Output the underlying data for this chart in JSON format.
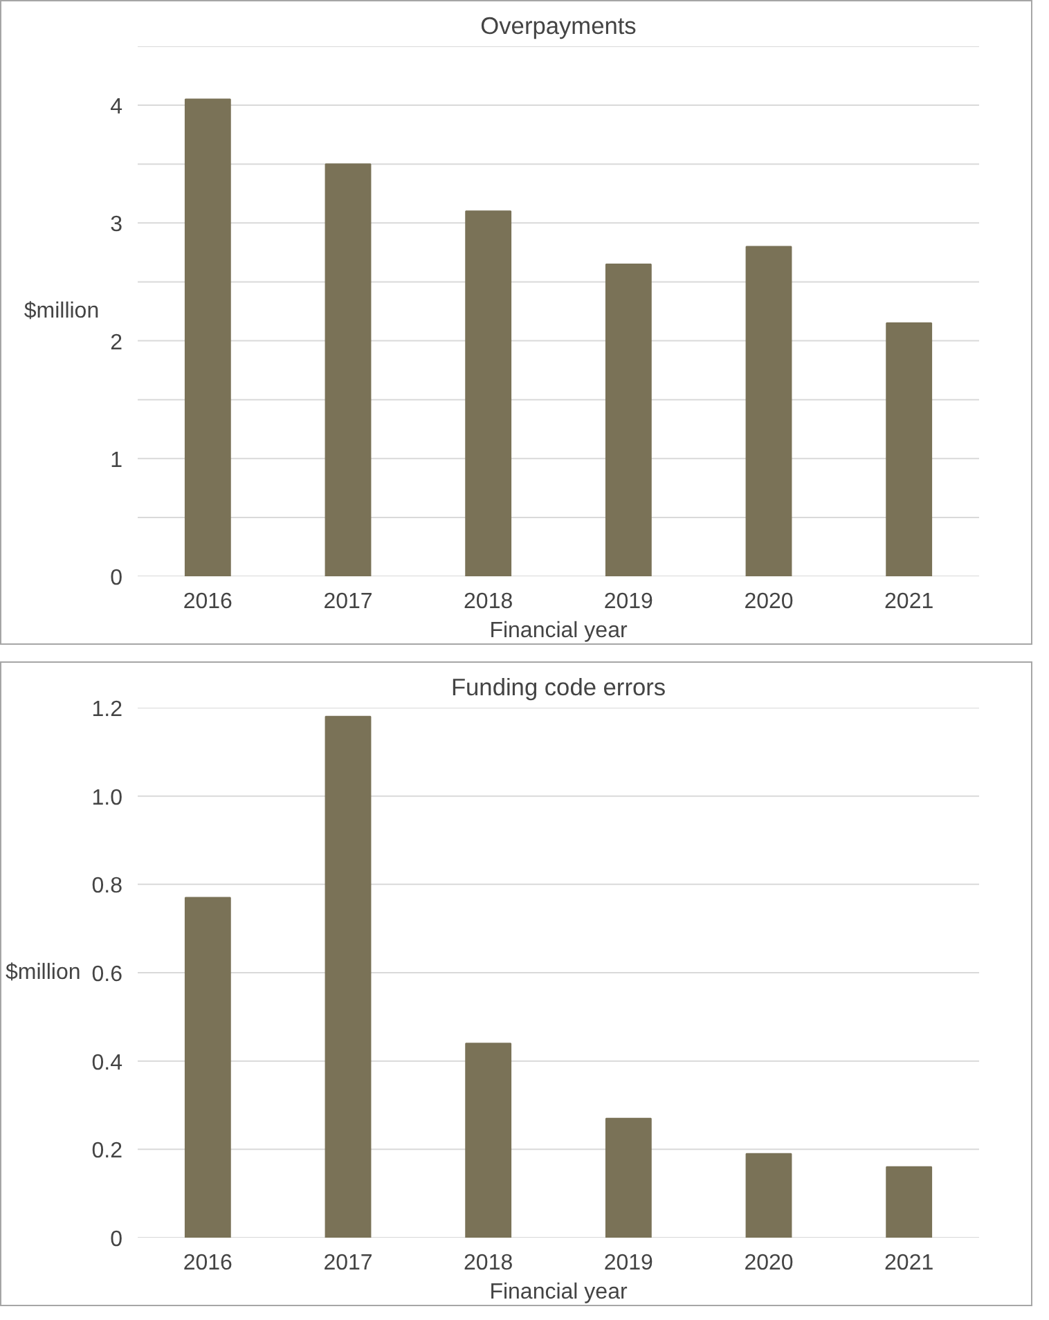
{
  "chart_data": [
    {
      "type": "bar",
      "title": "Overpayments",
      "xlabel": "Financial year",
      "ylabel": "$million",
      "categories": [
        "2016",
        "2017",
        "2018",
        "2019",
        "2020",
        "2021"
      ],
      "values": [
        4.05,
        3.5,
        3.1,
        2.65,
        2.8,
        2.15
      ],
      "color": "#7a7257",
      "ylim": [
        0,
        4.5
      ],
      "yticks": [
        0,
        {
          "value": 0.5,
          "label": null
        },
        1,
        {
          "value": 1.5,
          "label": null
        },
        2,
        {
          "value": 2.5,
          "label": null
        },
        3,
        {
          "value": 3.5,
          "label": null
        },
        4,
        {
          "value": 4.5,
          "label": null
        }
      ],
      "grid": "y"
    },
    {
      "type": "bar",
      "title": "Funding code errors",
      "xlabel": "Financial year",
      "ylabel": "$million",
      "categories": [
        "2016",
        "2017",
        "2018",
        "2019",
        "2020",
        "2021"
      ],
      "values": [
        0.77,
        1.18,
        0.44,
        0.27,
        0.19,
        0.16
      ],
      "color": "#7a7257",
      "ylim": [
        0,
        1.2
      ],
      "yticks": [
        0,
        0.2,
        0.4,
        0.6,
        0.8,
        {
          "value": 1.0,
          "label": "1.0"
        },
        1.2
      ],
      "grid": "y"
    }
  ]
}
